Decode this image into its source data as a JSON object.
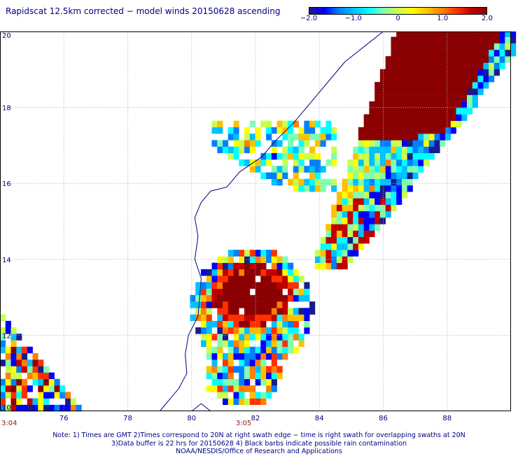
{
  "title": "Rapidscat 12.5km corrected − model winds 20150628 ascending",
  "colorbar": {
    "colors": [
      "#1a1a8c",
      "#0000ff",
      "#0080ff",
      "#00c0ff",
      "#00ffff",
      "#80ffb0",
      "#c8ff50",
      "#ffff00",
      "#ffc000",
      "#ff8000",
      "#ff3000",
      "#c00000",
      "#8b0000"
    ],
    "ticks": [
      {
        "label": "−2.0",
        "value": -2.0
      },
      {
        "label": "−1.0",
        "value": -1.0
      },
      {
        "label": "0",
        "value": 0
      },
      {
        "label": "1.0",
        "value": 1.0
      },
      {
        "label": "2.0",
        "value": 2.0
      }
    ],
    "range": [
      -2.0,
      2.0
    ]
  },
  "map": {
    "lon_range": [
      74,
      90
    ],
    "lat_range": [
      10,
      20
    ],
    "lon_ticks": [
      "76",
      "78",
      "80",
      "82",
      "84",
      "86",
      "88"
    ],
    "lat_ticks": [
      "20",
      "18",
      "16",
      "14",
      "12",
      "10"
    ],
    "grid_color": "#b0b0b0",
    "coast_color": "#000080"
  },
  "times": [
    {
      "label": "3:04",
      "lon": 74.2
    },
    {
      "label": "3:05",
      "lon": 81.6
    }
  ],
  "notes": [
    "Note: 1) Times are GMT 2)Times correspond to 20N at right swath edge − time is right swath for overlapping swaths at 20N",
    "3)Data buffer is 22 hrs for 20150628 4) Black barbs indicate possible rain contamination",
    "NOAA/NESDIS/Office of Research and Applications"
  ]
}
